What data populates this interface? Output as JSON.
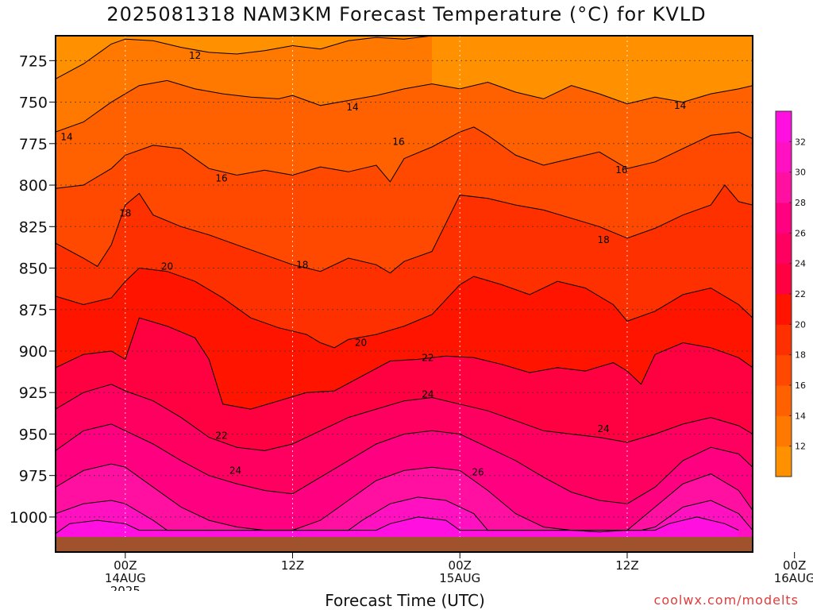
{
  "page": {
    "title": "2025081318 NAM3KM Forecast Temperature (°C) for KVLD",
    "xlabel": "Forecast Time (UTC)",
    "credit": "coolwx.com/modelts"
  },
  "chart_data": {
    "type": "heatmap",
    "title": "2025081318 NAM3KM Forecast Temperature (°C) for KVLD",
    "xlabel": "Forecast Time (UTC)",
    "ylabel": "",
    "x_range_hours": [
      -5,
      45
    ],
    "y_range_hpa": [
      710,
      1012
    ],
    "y_inverted": true,
    "y_ticks": [
      725,
      750,
      775,
      800,
      825,
      850,
      875,
      900,
      925,
      950,
      975,
      1000
    ],
    "x_ticks": [
      {
        "hour": 0,
        "lines": [
          "00Z",
          "14AUG",
          "2025"
        ]
      },
      {
        "hour": 12,
        "lines": [
          "12Z"
        ]
      },
      {
        "hour": 24,
        "lines": [
          "00Z",
          "15AUG"
        ]
      },
      {
        "hour": 36,
        "lines": [
          "12Z"
        ]
      },
      {
        "hour": 48,
        "lines": [
          "00Z",
          "16AUG"
        ]
      }
    ],
    "grid": true,
    "colorbar": {
      "levels": [
        10,
        12,
        14,
        16,
        18,
        20,
        22,
        24,
        26,
        28,
        30,
        32,
        34
      ],
      "colors": [
        "#ff9000",
        "#ff7800",
        "#ff6000",
        "#ff4800",
        "#ff3000",
        "#ff1400",
        "#ff0040",
        "#ff0060",
        "#ff0080",
        "#ff10a0",
        "#ff10c0",
        "#ff10e0"
      ],
      "tick_labels": [
        12,
        14,
        16,
        18,
        20,
        22,
        24,
        26,
        28,
        30,
        32
      ]
    },
    "contour_interval": 2,
    "ground_color": "#a0522d",
    "isotherms": [
      {
        "level": 12,
        "points": [
          [
            -5,
            736
          ],
          [
            -3,
            727
          ],
          [
            -1,
            715
          ],
          [
            0,
            712
          ],
          [
            2,
            713
          ],
          [
            4,
            717
          ],
          [
            6,
            720
          ],
          [
            8,
            721
          ],
          [
            10,
            719
          ],
          [
            12,
            716
          ],
          [
            14,
            718
          ],
          [
            16,
            713
          ],
          [
            18,
            711
          ],
          [
            20,
            712
          ],
          [
            22,
            710
          ]
        ]
      },
      {
        "level": 14,
        "points": [
          [
            -5,
            768
          ],
          [
            -3,
            762
          ],
          [
            -1,
            750
          ],
          [
            0,
            745
          ],
          [
            1,
            740
          ],
          [
            3,
            737
          ],
          [
            5,
            742
          ],
          [
            7,
            745
          ],
          [
            9,
            747
          ],
          [
            11,
            748
          ],
          [
            12,
            746
          ],
          [
            14,
            752
          ],
          [
            16,
            749
          ],
          [
            18,
            746
          ],
          [
            20,
            742
          ],
          [
            22,
            739
          ],
          [
            24,
            742
          ],
          [
            26,
            738
          ],
          [
            28,
            744
          ],
          [
            30,
            748
          ],
          [
            32,
            740
          ],
          [
            34,
            745
          ],
          [
            36,
            751
          ],
          [
            38,
            747
          ],
          [
            40,
            750
          ],
          [
            42,
            745
          ],
          [
            44,
            742
          ],
          [
            45,
            740
          ]
        ]
      },
      {
        "level": 16,
        "points": [
          [
            -5,
            802
          ],
          [
            -3,
            800
          ],
          [
            -1,
            790
          ],
          [
            0,
            782
          ],
          [
            2,
            776
          ],
          [
            4,
            778
          ],
          [
            6,
            790
          ],
          [
            8,
            794
          ],
          [
            10,
            791
          ],
          [
            12,
            794
          ],
          [
            14,
            789
          ],
          [
            16,
            792
          ],
          [
            18,
            788
          ],
          [
            19,
            798
          ],
          [
            20,
            784
          ],
          [
            22,
            777
          ],
          [
            24,
            768
          ],
          [
            25,
            765
          ],
          [
            26,
            770
          ],
          [
            28,
            782
          ],
          [
            30,
            788
          ],
          [
            32,
            784
          ],
          [
            34,
            780
          ],
          [
            36,
            790
          ],
          [
            38,
            786
          ],
          [
            40,
            778
          ],
          [
            42,
            770
          ],
          [
            44,
            768
          ],
          [
            45,
            772
          ]
        ]
      },
      {
        "level": 18,
        "points": [
          [
            -5,
            835
          ],
          [
            -3,
            844
          ],
          [
            -2,
            849
          ],
          [
            -1,
            836
          ],
          [
            0,
            812
          ],
          [
            1,
            805
          ],
          [
            2,
            818
          ],
          [
            4,
            825
          ],
          [
            6,
            830
          ],
          [
            8,
            836
          ],
          [
            10,
            842
          ],
          [
            12,
            848
          ],
          [
            14,
            852
          ],
          [
            16,
            844
          ],
          [
            18,
            848
          ],
          [
            19,
            853
          ],
          [
            20,
            846
          ],
          [
            22,
            840
          ],
          [
            24,
            806
          ],
          [
            26,
            808
          ],
          [
            28,
            812
          ],
          [
            30,
            815
          ],
          [
            32,
            820
          ],
          [
            34,
            825
          ],
          [
            36,
            832
          ],
          [
            38,
            826
          ],
          [
            40,
            818
          ],
          [
            42,
            812
          ],
          [
            43,
            800
          ],
          [
            44,
            810
          ],
          [
            45,
            812
          ]
        ]
      },
      {
        "level": 20,
        "points": [
          [
            -5,
            867
          ],
          [
            -3,
            872
          ],
          [
            -1,
            868
          ],
          [
            0,
            858
          ],
          [
            1,
            850
          ],
          [
            3,
            852
          ],
          [
            5,
            858
          ],
          [
            7,
            868
          ],
          [
            9,
            880
          ],
          [
            11,
            886
          ],
          [
            13,
            890
          ],
          [
            14,
            895
          ],
          [
            15,
            898
          ],
          [
            16,
            893
          ],
          [
            18,
            890
          ],
          [
            20,
            885
          ],
          [
            22,
            878
          ],
          [
            24,
            860
          ],
          [
            25,
            855
          ],
          [
            27,
            860
          ],
          [
            29,
            866
          ],
          [
            31,
            858
          ],
          [
            33,
            862
          ],
          [
            35,
            872
          ],
          [
            36,
            882
          ],
          [
            38,
            876
          ],
          [
            40,
            866
          ],
          [
            42,
            862
          ],
          [
            44,
            872
          ],
          [
            45,
            880
          ]
        ]
      },
      {
        "level": 22,
        "points": [
          [
            -5,
            910
          ],
          [
            -3,
            902
          ],
          [
            -1,
            900
          ],
          [
            0,
            905
          ],
          [
            1,
            880
          ],
          [
            3,
            885
          ],
          [
            5,
            892
          ],
          [
            6,
            905
          ],
          [
            7,
            932
          ],
          [
            9,
            935
          ],
          [
            11,
            930
          ],
          [
            13,
            925
          ],
          [
            15,
            924
          ],
          [
            17,
            915
          ],
          [
            19,
            906
          ],
          [
            21,
            905
          ],
          [
            23,
            903
          ],
          [
            25,
            904
          ],
          [
            27,
            908
          ],
          [
            29,
            913
          ],
          [
            31,
            910
          ],
          [
            33,
            912
          ],
          [
            35,
            907
          ],
          [
            36,
            912
          ],
          [
            37,
            920
          ],
          [
            38,
            902
          ],
          [
            40,
            895
          ],
          [
            42,
            898
          ],
          [
            44,
            904
          ],
          [
            45,
            910
          ]
        ]
      },
      {
        "level": 24,
        "points": [
          [
            -5,
            935
          ],
          [
            -3,
            925
          ],
          [
            -1,
            920
          ],
          [
            0,
            924
          ],
          [
            2,
            930
          ],
          [
            4,
            940
          ],
          [
            6,
            952
          ],
          [
            8,
            958
          ],
          [
            10,
            960
          ],
          [
            12,
            956
          ],
          [
            14,
            948
          ],
          [
            16,
            940
          ],
          [
            18,
            935
          ],
          [
            20,
            930
          ],
          [
            22,
            928
          ],
          [
            24,
            932
          ],
          [
            26,
            936
          ],
          [
            28,
            942
          ],
          [
            30,
            948
          ],
          [
            32,
            950
          ],
          [
            34,
            952
          ],
          [
            36,
            955
          ],
          [
            38,
            950
          ],
          [
            40,
            944
          ],
          [
            42,
            940
          ],
          [
            44,
            945
          ],
          [
            45,
            950
          ]
        ]
      },
      {
        "level": 26,
        "points": [
          [
            -5,
            960
          ],
          [
            -3,
            948
          ],
          [
            -1,
            944
          ],
          [
            0,
            948
          ],
          [
            2,
            956
          ],
          [
            4,
            966
          ],
          [
            6,
            975
          ],
          [
            8,
            980
          ],
          [
            10,
            984
          ],
          [
            12,
            986
          ],
          [
            14,
            976
          ],
          [
            16,
            966
          ],
          [
            18,
            956
          ],
          [
            20,
            950
          ],
          [
            22,
            948
          ],
          [
            24,
            950
          ],
          [
            26,
            958
          ],
          [
            28,
            966
          ],
          [
            30,
            976
          ],
          [
            32,
            985
          ],
          [
            34,
            990
          ],
          [
            36,
            992
          ],
          [
            38,
            982
          ],
          [
            40,
            966
          ],
          [
            42,
            958
          ],
          [
            44,
            962
          ],
          [
            45,
            970
          ]
        ]
      },
      {
        "level": 28,
        "points": [
          [
            -5,
            982
          ],
          [
            -3,
            972
          ],
          [
            -1,
            968
          ],
          [
            0,
            970
          ],
          [
            2,
            982
          ],
          [
            4,
            994
          ],
          [
            6,
            1002
          ],
          [
            8,
            1006
          ],
          [
            10,
            1008
          ],
          [
            12,
            1008
          ],
          [
            14,
            1002
          ],
          [
            16,
            990
          ],
          [
            18,
            978
          ],
          [
            20,
            972
          ],
          [
            22,
            970
          ],
          [
            24,
            972
          ],
          [
            26,
            984
          ],
          [
            28,
            998
          ],
          [
            30,
            1006
          ],
          [
            32,
            1008
          ],
          [
            34,
            1009
          ],
          [
            36,
            1008
          ],
          [
            38,
            994
          ],
          [
            40,
            980
          ],
          [
            42,
            974
          ],
          [
            44,
            984
          ],
          [
            45,
            996
          ]
        ]
      },
      {
        "level": 30,
        "points": [
          [
            -5,
            998
          ],
          [
            -3,
            992
          ],
          [
            -1,
            990
          ],
          [
            0,
            992
          ],
          [
            2,
            1002
          ],
          [
            3,
            1008
          ],
          [
            12,
            1008
          ],
          [
            16,
            1008
          ],
          [
            17,
            1002
          ],
          [
            19,
            992
          ],
          [
            21,
            988
          ],
          [
            23,
            990
          ],
          [
            25,
            998
          ],
          [
            26,
            1008
          ],
          [
            37,
            1008
          ],
          [
            38,
            1006
          ],
          [
            40,
            994
          ],
          [
            42,
            990
          ],
          [
            44,
            998
          ],
          [
            45,
            1008
          ]
        ]
      },
      {
        "level": 32,
        "points": [
          [
            -5,
            1010
          ],
          [
            -4,
            1004
          ],
          [
            -2,
            1002
          ],
          [
            0,
            1004
          ],
          [
            1,
            1008
          ],
          [
            18,
            1008
          ],
          [
            19,
            1004
          ],
          [
            21,
            1000
          ],
          [
            23,
            1002
          ],
          [
            24,
            1008
          ],
          [
            38,
            1008
          ],
          [
            39,
            1004
          ],
          [
            41,
            1000
          ],
          [
            43,
            1004
          ],
          [
            44,
            1008
          ]
        ]
      }
    ],
    "contour_labels": [
      {
        "text": "12",
        "x": 5.0,
        "y": 722
      },
      {
        "text": "14",
        "x": -4.2,
        "y": 771
      },
      {
        "text": "14",
        "x": 16.3,
        "y": 753
      },
      {
        "text": "14",
        "x": 39.8,
        "y": 752
      },
      {
        "text": "16",
        "x": 6.9,
        "y": 796
      },
      {
        "text": "16",
        "x": 19.6,
        "y": 774
      },
      {
        "text": "16",
        "x": 35.6,
        "y": 791
      },
      {
        "text": "18",
        "x": 0.0,
        "y": 817
      },
      {
        "text": "18",
        "x": 12.7,
        "y": 848
      },
      {
        "text": "18",
        "x": 34.3,
        "y": 833
      },
      {
        "text": "20",
        "x": 3.0,
        "y": 849
      },
      {
        "text": "20",
        "x": 16.9,
        "y": 895
      },
      {
        "text": "22",
        "x": 6.9,
        "y": 951
      },
      {
        "text": "22",
        "x": 21.7,
        "y": 904
      },
      {
        "text": "24",
        "x": 7.9,
        "y": 972
      },
      {
        "text": "24",
        "x": 21.7,
        "y": 926
      },
      {
        "text": "24",
        "x": 34.3,
        "y": 947
      },
      {
        "text": "26",
        "x": 25.3,
        "y": 973
      }
    ]
  }
}
